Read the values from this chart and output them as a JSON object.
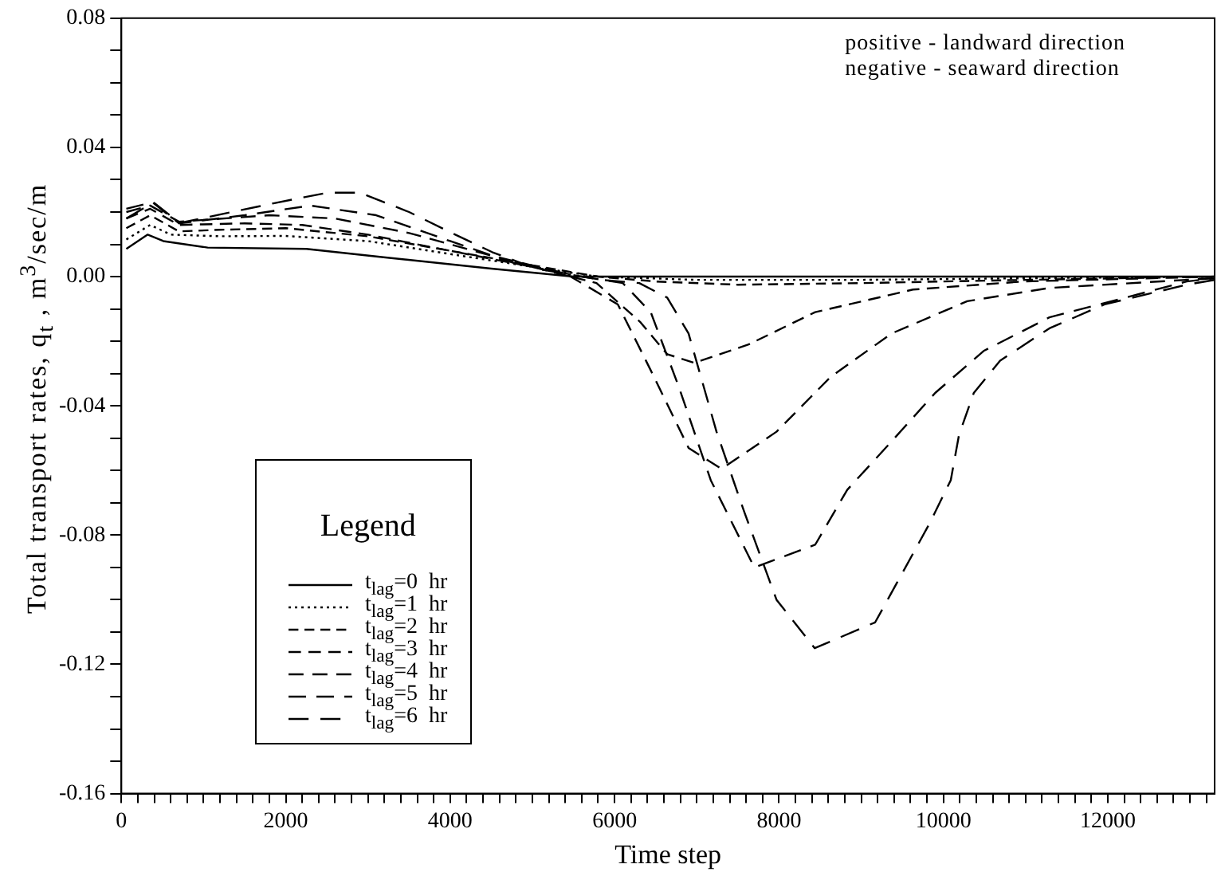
{
  "chart_data": {
    "type": "line",
    "xlabel": "Time step",
    "ylabel": "Total transport rates, q$_{t}$ , m$^{3}$/sec/m",
    "legend_title": "Legend",
    "legend": "bottom left",
    "grid": false,
    "marker": "none",
    "annotations": [
      "positive - landward direction",
      "negative - seaward direction"
    ],
    "xlim": [
      0,
      13300
    ],
    "ylim": [
      -0.16,
      0.08
    ],
    "xticks": [
      0,
      {
        "value": 200,
        "label": null
      },
      {
        "value": 400,
        "label": null
      },
      {
        "value": 600,
        "label": null
      },
      {
        "value": 800,
        "label": null
      },
      {
        "value": 1000,
        "label": null
      },
      {
        "value": 1200,
        "label": null
      },
      {
        "value": 1400,
        "label": null
      },
      {
        "value": 1600,
        "label": null
      },
      {
        "value": 1800,
        "label": null
      },
      2000,
      {
        "value": 2200,
        "label": null
      },
      {
        "value": 2400,
        "label": null
      },
      {
        "value": 2600,
        "label": null
      },
      {
        "value": 2800,
        "label": null
      },
      {
        "value": 3000,
        "label": null
      },
      {
        "value": 3200,
        "label": null
      },
      {
        "value": 3400,
        "label": null
      },
      {
        "value": 3600,
        "label": null
      },
      {
        "value": 3800,
        "label": null
      },
      4000,
      {
        "value": 4200,
        "label": null
      },
      {
        "value": 4400,
        "label": null
      },
      {
        "value": 4600,
        "label": null
      },
      {
        "value": 4800,
        "label": null
      },
      {
        "value": 5000,
        "label": null
      },
      {
        "value": 5200,
        "label": null
      },
      {
        "value": 5400,
        "label": null
      },
      {
        "value": 5600,
        "label": null
      },
      {
        "value": 5800,
        "label": null
      },
      6000,
      {
        "value": 6200,
        "label": null
      },
      {
        "value": 6400,
        "label": null
      },
      {
        "value": 6600,
        "label": null
      },
      {
        "value": 6800,
        "label": null
      },
      {
        "value": 7000,
        "label": null
      },
      {
        "value": 7200,
        "label": null
      },
      {
        "value": 7400,
        "label": null
      },
      {
        "value": 7600,
        "label": null
      },
      {
        "value": 7800,
        "label": null
      },
      8000,
      {
        "value": 8200,
        "label": null
      },
      {
        "value": 8400,
        "label": null
      },
      {
        "value": 8600,
        "label": null
      },
      {
        "value": 8800,
        "label": null
      },
      {
        "value": 9000,
        "label": null
      },
      {
        "value": 9200,
        "label": null
      },
      {
        "value": 9400,
        "label": null
      },
      {
        "value": 9600,
        "label": null
      },
      {
        "value": 9800,
        "label": null
      },
      10000,
      {
        "value": 10200,
        "label": null
      },
      {
        "value": 10400,
        "label": null
      },
      {
        "value": 10600,
        "label": null
      },
      {
        "value": 10800,
        "label": null
      },
      {
        "value": 11000,
        "label": null
      },
      {
        "value": 11200,
        "label": null
      },
      {
        "value": 11400,
        "label": null
      },
      {
        "value": 11600,
        "label": null
      },
      {
        "value": 11800,
        "label": null
      },
      12000,
      {
        "value": 12200,
        "label": null
      },
      {
        "value": 12400,
        "label": null
      },
      {
        "value": 12600,
        "label": null
      },
      {
        "value": 12800,
        "label": null
      },
      {
        "value": 13000,
        "label": null
      },
      {
        "value": 13200,
        "label": null
      }
    ],
    "yticks": [
      -0.16,
      {
        "value": -0.15,
        "label": null
      },
      {
        "value": -0.14,
        "label": null
      },
      {
        "value": -0.13,
        "label": null
      },
      -0.12,
      {
        "value": -0.11,
        "label": null
      },
      {
        "value": -0.1,
        "label": null
      },
      {
        "value": -0.09,
        "label": null
      },
      -0.08,
      {
        "value": -0.07,
        "label": null
      },
      {
        "value": -0.06,
        "label": null
      },
      {
        "value": -0.05,
        "label": null
      },
      -0.04,
      {
        "value": -0.03,
        "label": null
      },
      {
        "value": -0.02,
        "label": null
      },
      {
        "value": -0.01,
        "label": null
      },
      {
        "value": 0,
        "label": "0.00"
      },
      {
        "value": 0.01,
        "label": null
      },
      {
        "value": 0.02,
        "label": null
      },
      {
        "value": 0.03,
        "label": null
      },
      0.04,
      {
        "value": 0.05,
        "label": null
      },
      {
        "value": 0.06,
        "label": null
      },
      {
        "value": 0.07,
        "label": null
      },
      0.08
    ],
    "series": [
      {
        "name": "t$_{lag}$=0  hr",
        "color": "#000000",
        "line_style": "solid",
        "x": [
          60,
          320,
          510,
          1050,
          2250,
          3190,
          4500,
          5500,
          7000,
          10000,
          13300
        ],
        "values": [
          0.0086,
          0.013,
          0.011,
          0.009,
          0.0086,
          0.006,
          0.0025,
          0,
          0,
          0,
          0
        ]
      },
      {
        "name": "t$_{lag}$=1  hr",
        "color": "#000000",
        "line_style": "dotted",
        "x": [
          60,
          350,
          600,
          1200,
          2000,
          3000,
          4000,
          5000,
          5800,
          7000,
          9000,
          11000,
          13300
        ],
        "values": [
          0.0115,
          0.016,
          0.013,
          0.0125,
          0.0126,
          0.011,
          0.007,
          0.003,
          0,
          -0.001,
          -0.001,
          -0.0005,
          0
        ]
      },
      {
        "name": "t$_{lag}$=2  hr",
        "color": "#000000",
        "line_style": "dashed",
        "x": [
          60,
          350,
          700,
          1200,
          2000,
          3000,
          4000,
          5000,
          5800,
          6500,
          7500,
          9000,
          11000,
          13300
        ],
        "values": [
          0.015,
          0.019,
          0.014,
          0.0145,
          0.015,
          0.0125,
          0.008,
          0.0035,
          0,
          -0.0015,
          -0.0025,
          -0.002,
          -0.001,
          0
        ]
      },
      {
        "name": "t$_{lag}$=3  hr",
        "color": "#000000",
        "line_style": "dashed",
        "x": [
          60,
          350,
          700,
          1500,
          2200,
          3000,
          4000,
          5000,
          5780,
          6310,
          6640,
          6970,
          7630,
          8440,
          9630,
          10970,
          13300
        ],
        "values": [
          0.018,
          0.021,
          0.016,
          0.0165,
          0.016,
          0.013,
          0.008,
          0.003,
          -0.002,
          -0.014,
          -0.024,
          -0.0267,
          -0.021,
          -0.011,
          -0.004,
          -0.0015,
          0
        ]
      },
      {
        "name": "t$_{lag}$=4  hr",
        "color": "#000000",
        "line_style": "dashed",
        "x": [
          60,
          350,
          700,
          1800,
          2600,
          3500,
          4500,
          5400,
          6040,
          6440,
          6900,
          7300,
          7970,
          8630,
          9370,
          10290,
          11290,
          12960,
          13300
        ],
        "values": [
          0.02,
          0.022,
          0.017,
          0.019,
          0.018,
          0.0135,
          0.0065,
          0.001,
          -0.0086,
          -0.029,
          -0.053,
          -0.0595,
          -0.048,
          -0.031,
          -0.0176,
          -0.0076,
          -0.0035,
          -0.001,
          -0.0005
        ]
      },
      {
        "name": "t$_{lag}$=5  hr",
        "color": "#000000",
        "line_style": "dashed",
        "x": [
          60,
          380,
          700,
          1500,
          2300,
          3100,
          4000,
          4800,
          5600,
          6100,
          6440,
          6780,
          7170,
          7700,
          8440,
          8830,
          9370,
          9900,
          10490,
          11290,
          12290,
          12960,
          13300
        ],
        "values": [
          0.021,
          0.023,
          0.0165,
          0.019,
          0.022,
          0.019,
          0.011,
          0.004,
          0,
          -0.002,
          -0.011,
          -0.034,
          -0.063,
          -0.09,
          -0.083,
          -0.066,
          -0.051,
          -0.036,
          -0.023,
          -0.0126,
          -0.006,
          -0.0015,
          -0.0005
        ]
      },
      {
        "name": "t$_{lag}$=6  hr",
        "color": "#000000",
        "line_style": "dashed",
        "x": [
          60,
          390,
          710,
          1850,
          2510,
          2900,
          3500,
          3980,
          4510,
          5040,
          5840,
          6300,
          6640,
          6900,
          7240,
          7580,
          7970,
          8435,
          9170,
          9430,
          9830,
          10090,
          10190,
          10370,
          10690,
          11290,
          11960,
          12960,
          13300
        ],
        "values": [
          0.018,
          0.023,
          0.0166,
          0.0227,
          0.026,
          0.026,
          0.02,
          0.014,
          0.0076,
          0.0025,
          -0.001,
          -0.002,
          -0.0065,
          -0.0176,
          -0.048,
          -0.073,
          -0.1,
          -0.115,
          -0.107,
          -0.095,
          -0.0765,
          -0.063,
          -0.049,
          -0.036,
          -0.026,
          -0.016,
          -0.0086,
          -0.0025,
          -0.001
        ]
      }
    ]
  }
}
